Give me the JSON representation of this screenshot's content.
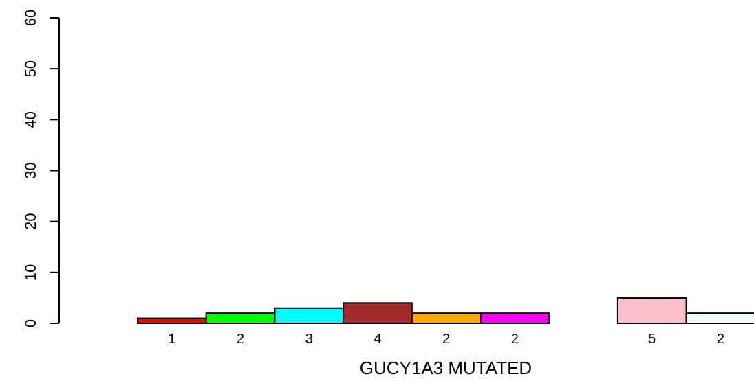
{
  "chart_data": {
    "type": "bar",
    "xlabel": "GUCY1A3 MUTATED",
    "ylabel": "",
    "ylim": [
      0,
      60
    ],
    "yticks": [
      "0",
      "10",
      "20",
      "30",
      "40",
      "50",
      "60"
    ],
    "grid": false,
    "categories": [
      "1",
      "2",
      "3",
      "4",
      "2",
      "2",
      "",
      "5",
      "2"
    ],
    "values": [
      1,
      2,
      3,
      4,
      2,
      2,
      0,
      5,
      2
    ],
    "colors": [
      "#ff0000",
      "#00ff00",
      "#00ffff",
      "#a52a2a",
      "#ffa500",
      "#ff00ff",
      "#ffffff",
      "#ffc0cb",
      "#f0ffff"
    ]
  }
}
